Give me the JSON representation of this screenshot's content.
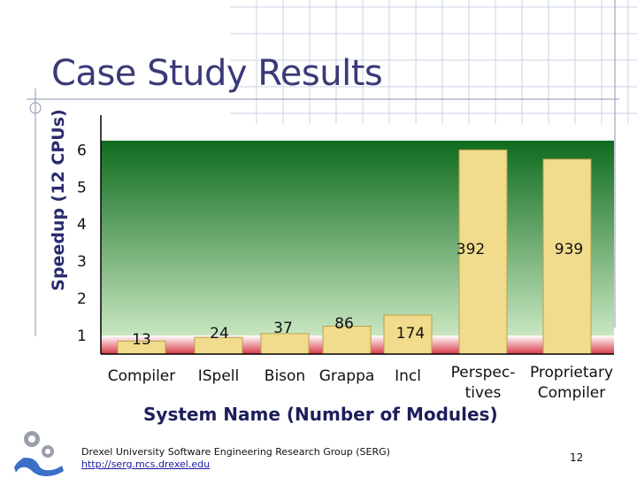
{
  "slide": {
    "title": "Case Study Results",
    "footer_line1": "Drexel University Software Engineering Research Group (SERG)",
    "footer_link": "http://serg.mcs.drexel.edu",
    "page_number": "12"
  },
  "colors": {
    "bar_fill": "#f0dc8c",
    "bar_stroke": "#b8a24a",
    "band_green_dark": "#0e6b1e",
    "band_green_light": "#c8e6c0",
    "band_red": "#d83a48",
    "title_color": "#3a3a78",
    "axis_color": "#000000"
  },
  "chart_data": {
    "type": "bar",
    "title": "Case Study Results",
    "xlabel": "System Name (Number of Modules)",
    "ylabel": "Speedup (12 CPUs)",
    "ylim": [
      0.5,
      6.7
    ],
    "yticks": [
      1,
      2,
      3,
      4,
      5,
      6
    ],
    "grid": false,
    "legend": "none",
    "categories": [
      {
        "lines": [
          "Compiler"
        ]
      },
      {
        "lines": [
          "ISpell"
        ]
      },
      {
        "lines": [
          "Bison"
        ]
      },
      {
        "lines": [
          "Grappa"
        ]
      },
      {
        "lines": [
          "Incl"
        ]
      },
      {
        "lines": [
          "Perspec-",
          "tives"
        ]
      },
      {
        "lines": [
          "Proprietary",
          "Compiler"
        ]
      }
    ],
    "values": [
      0.85,
      0.95,
      1.05,
      1.25,
      1.55,
      6.0,
      5.75
    ],
    "data_labels": [
      "13",
      "24",
      "37",
      "86",
      "174",
      "392",
      "939"
    ]
  }
}
